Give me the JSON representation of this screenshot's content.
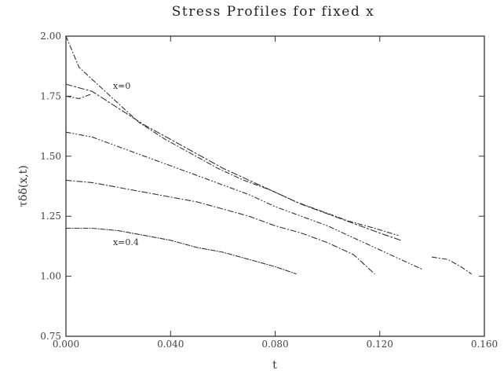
{
  "chart_data": {
    "type": "line",
    "title": "Stress Profiles for fixed x",
    "xlabel": "t",
    "ylabel": "τδδ(x,t)",
    "xlim": [
      0.0,
      0.16
    ],
    "ylim": [
      0.75,
      2.0
    ],
    "xticks": [
      {
        "value": 0.0,
        "label": "0.000"
      },
      {
        "value": 0.04,
        "label": "0.040"
      },
      {
        "value": 0.08,
        "label": "0.080"
      },
      {
        "value": 0.12,
        "label": "0.120"
      },
      {
        "value": 0.16,
        "label": "0.160"
      }
    ],
    "yticks": [
      {
        "value": 0.75,
        "label": "0.75"
      },
      {
        "value": 1.0,
        "label": "1.00"
      },
      {
        "value": 1.25,
        "label": "1.25"
      },
      {
        "value": 1.5,
        "label": "1.50"
      },
      {
        "value": 1.75,
        "label": "1.75"
      },
      {
        "value": 2.0,
        "label": "2.00"
      }
    ],
    "grid": false,
    "series": [
      {
        "dash": "6,3,1,3",
        "points": [
          [
            0.0,
            2.0
          ],
          [
            0.005,
            1.87
          ],
          [
            0.012,
            1.8
          ],
          [
            0.02,
            1.72
          ],
          [
            0.028,
            1.64
          ],
          [
            0.038,
            1.57
          ],
          [
            0.048,
            1.51
          ],
          [
            0.058,
            1.45
          ],
          [
            0.068,
            1.4
          ],
          [
            0.078,
            1.36
          ],
          [
            0.088,
            1.31
          ],
          [
            0.098,
            1.27
          ],
          [
            0.108,
            1.23
          ],
          [
            0.118,
            1.2
          ],
          [
            0.127,
            1.17
          ]
        ]
      },
      {
        "dash": "8,3,2,3",
        "points": [
          [
            0.0,
            1.8
          ],
          [
            0.01,
            1.77
          ],
          [
            0.02,
            1.7
          ],
          [
            0.03,
            1.63
          ],
          [
            0.04,
            1.57
          ],
          [
            0.05,
            1.51
          ],
          [
            0.06,
            1.45
          ],
          [
            0.07,
            1.4
          ],
          [
            0.08,
            1.35
          ],
          [
            0.09,
            1.3
          ],
          [
            0.1,
            1.26
          ],
          [
            0.11,
            1.22
          ],
          [
            0.12,
            1.18
          ],
          [
            0.128,
            1.15
          ]
        ]
      },
      {
        "dash": "6,3,1,3,1,3",
        "points": [
          [
            0.0,
            1.6
          ],
          [
            0.01,
            1.58
          ],
          [
            0.02,
            1.54
          ],
          [
            0.03,
            1.5
          ],
          [
            0.04,
            1.46
          ],
          [
            0.05,
            1.42
          ],
          [
            0.06,
            1.38
          ],
          [
            0.07,
            1.34
          ],
          [
            0.08,
            1.29
          ],
          [
            0.09,
            1.25
          ],
          [
            0.1,
            1.21
          ],
          [
            0.11,
            1.16
          ],
          [
            0.12,
            1.11
          ],
          [
            0.13,
            1.06
          ],
          [
            0.136,
            1.03
          ]
        ]
      },
      {
        "dash": "7,3,1,3",
        "points": [
          [
            0.0,
            1.4
          ],
          [
            0.01,
            1.39
          ],
          [
            0.02,
            1.37
          ],
          [
            0.03,
            1.35
          ],
          [
            0.04,
            1.33
          ],
          [
            0.05,
            1.31
          ],
          [
            0.06,
            1.28
          ],
          [
            0.07,
            1.25
          ],
          [
            0.08,
            1.21
          ],
          [
            0.09,
            1.18
          ],
          [
            0.1,
            1.14
          ],
          [
            0.11,
            1.09
          ],
          [
            0.118,
            1.01
          ]
        ]
      },
      {
        "dash": "6,2,1,2",
        "points": [
          [
            0.0,
            1.2
          ],
          [
            0.01,
            1.2
          ],
          [
            0.02,
            1.19
          ],
          [
            0.03,
            1.17
          ],
          [
            0.04,
            1.15
          ],
          [
            0.05,
            1.12
          ],
          [
            0.06,
            1.1
          ],
          [
            0.07,
            1.07
          ],
          [
            0.08,
            1.04
          ],
          [
            0.088,
            1.01
          ]
        ]
      },
      {
        "dash": "6,3,1,3",
        "points": [
          [
            0.14,
            1.08
          ],
          [
            0.146,
            1.07
          ],
          [
            0.151,
            1.04
          ],
          [
            0.155,
            1.01
          ]
        ]
      },
      {
        "dash": "6,3,1,3",
        "points": [
          [
            0.0,
            1.75
          ],
          [
            0.005,
            1.74
          ],
          [
            0.01,
            1.76
          ]
        ]
      }
    ],
    "annotations": [
      {
        "text": "x=0",
        "x": 0.018,
        "y": 1.78
      },
      {
        "text": "x=0.4",
        "x": 0.018,
        "y": 1.13
      }
    ]
  }
}
